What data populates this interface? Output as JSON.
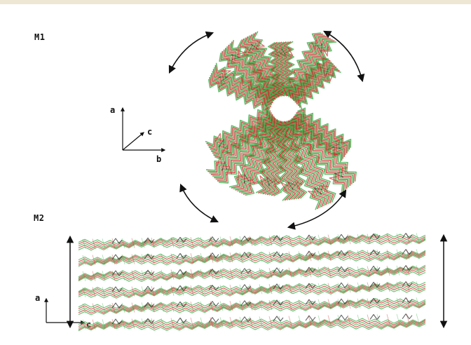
{
  "panels": {
    "m1": {
      "label": "M1",
      "axes": {
        "a": "a",
        "b": "b",
        "c": "c"
      }
    },
    "m2": {
      "label": "M2",
      "axes": {
        "a": "a",
        "c": "c"
      }
    }
  },
  "colors": {
    "green": "#3fae4a",
    "red": "#c9302c",
    "dark": "#222222",
    "arrow": "#111111"
  }
}
